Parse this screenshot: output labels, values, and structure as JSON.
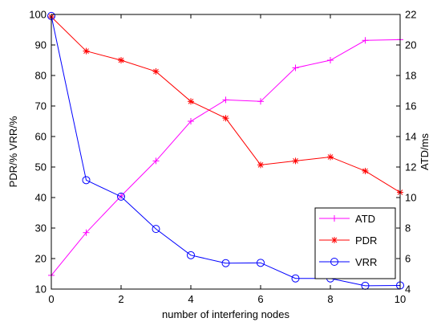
{
  "chart_data": {
    "type": "line",
    "xlabel": "number of interfering nodes",
    "ylabel_left": "PDR/% VRR/%",
    "ylabel_right": "ATD/ms",
    "xlim": [
      0,
      10
    ],
    "ylim_left": [
      10,
      100
    ],
    "ylim_right": [
      4,
      22
    ],
    "x_ticks": [
      "0",
      "2",
      "4",
      "6",
      "8",
      "10"
    ],
    "y_left_ticks": [
      "10",
      "20",
      "30",
      "40",
      "50",
      "60",
      "70",
      "80",
      "90",
      "100"
    ],
    "y_right_ticks": [
      "4",
      "6",
      "8",
      "10",
      "12",
      "14",
      "16",
      "18",
      "20",
      "22"
    ],
    "legend_position": "lower-right",
    "x": [
      0,
      1,
      2,
      3,
      4,
      5,
      6,
      7,
      8,
      9,
      10
    ],
    "series": [
      {
        "name": "ATD",
        "axis": "right",
        "color": "#ff00ff",
        "marker": "plus",
        "values": [
          4.9,
          7.7,
          10.1,
          12.4,
          15.0,
          16.4,
          16.3,
          18.5,
          19.0,
          20.3,
          20.35
        ]
      },
      {
        "name": "PDR",
        "axis": "left",
        "color": "#ff0000",
        "marker": "star",
        "values": [
          99.2,
          88.0,
          85.0,
          81.3,
          71.5,
          66.0,
          50.7,
          52.0,
          53.3,
          48.7,
          41.7
        ]
      },
      {
        "name": "VRR",
        "axis": "left",
        "color": "#0000ff",
        "marker": "circle",
        "values": [
          99.5,
          45.7,
          40.3,
          29.7,
          21.1,
          18.5,
          18.6,
          13.5,
          13.5,
          11.1,
          11.2
        ]
      }
    ]
  }
}
